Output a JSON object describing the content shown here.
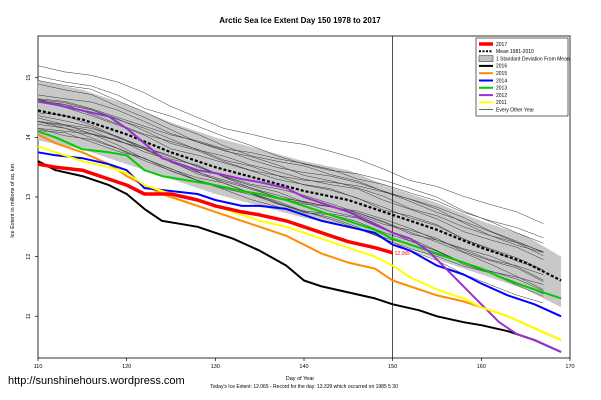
{
  "chart_data": {
    "type": "line",
    "title": "Arctic Sea Ice Extent Day 150 1978 to 2017",
    "xlabel": "Day of Year",
    "ylabel": "Ice Extent in millions of sq. km.",
    "xlim": [
      110,
      170
    ],
    "ylim": [
      10.3,
      15.7
    ],
    "x_ticks": [
      110,
      120,
      130,
      140,
      150,
      160,
      170
    ],
    "y_ticks": [
      11,
      12,
      13,
      14,
      15
    ],
    "marker_day": 150,
    "end_label": "12.065",
    "legend_position": "top-right",
    "legend": [
      {
        "label": "2017",
        "color": "#ff0000",
        "style": "thick"
      },
      {
        "label": "Mean 1981-2010",
        "color": "#000000",
        "style": "dotted"
      },
      {
        "label": "1 Standard Deviation From Mean",
        "color": "#c0c0c0",
        "style": "band"
      },
      {
        "label": "2016",
        "color": "#000000",
        "style": "solid"
      },
      {
        "label": "2015",
        "color": "#ff8c00",
        "style": "solid"
      },
      {
        "label": "2014",
        "color": "#0000ff",
        "style": "solid"
      },
      {
        "label": "2013",
        "color": "#00cc00",
        "style": "solid"
      },
      {
        "label": "2012",
        "color": "#9932cc",
        "style": "solid"
      },
      {
        "label": "2011",
        "color": "#ffff00",
        "style": "solid"
      },
      {
        "label": "Every Other Year",
        "color": "#000000",
        "style": "thin"
      }
    ],
    "mean": {
      "x": [
        110,
        115,
        120,
        125,
        130,
        135,
        140,
        145,
        150,
        155,
        160,
        165,
        169
      ],
      "y": [
        14.45,
        14.3,
        14.05,
        13.75,
        13.5,
        13.3,
        13.1,
        12.95,
        12.7,
        12.45,
        12.15,
        11.9,
        11.6
      ]
    },
    "std_band": {
      "x": [
        110,
        115,
        120,
        125,
        130,
        135,
        140,
        145,
        150,
        155,
        160,
        165,
        169
      ],
      "upper": [
        14.95,
        14.8,
        14.55,
        14.25,
        14.0,
        13.8,
        13.6,
        13.45,
        13.15,
        12.9,
        12.6,
        12.35,
        12.0
      ],
      "lower": [
        13.95,
        13.8,
        13.55,
        13.3,
        13.05,
        12.85,
        12.65,
        12.5,
        12.25,
        11.95,
        11.7,
        11.45,
        11.15
      ]
    },
    "series": [
      {
        "name": "2017",
        "color": "#ff0000",
        "width": 3.5,
        "x": [
          110,
          112,
          115,
          118,
          120,
          122,
          125,
          128,
          130,
          133,
          135,
          138,
          140,
          143,
          145,
          148,
          150
        ],
        "y": [
          13.55,
          13.5,
          13.45,
          13.3,
          13.2,
          13.05,
          13.05,
          12.95,
          12.85,
          12.75,
          12.7,
          12.6,
          12.5,
          12.35,
          12.25,
          12.15,
          12.065
        ]
      },
      {
        "name": "2016",
        "color": "#000000",
        "width": 2,
        "x": [
          110,
          112,
          115,
          118,
          120,
          122,
          124,
          126,
          128,
          130,
          132,
          135,
          138,
          140,
          142,
          145,
          148,
          150,
          153,
          155,
          158,
          160,
          163,
          166,
          169
        ],
        "y": [
          13.6,
          13.45,
          13.35,
          13.2,
          13.05,
          12.8,
          12.6,
          12.55,
          12.5,
          12.4,
          12.3,
          12.1,
          11.85,
          11.6,
          11.5,
          11.4,
          11.3,
          11.2,
          11.1,
          11.0,
          10.9,
          10.85,
          10.75,
          10.6,
          10.4
        ]
      },
      {
        "name": "2015",
        "color": "#ff8c00",
        "width": 2,
        "x": [
          110,
          112,
          115,
          118,
          120,
          122,
          124,
          126,
          128,
          130,
          133,
          135,
          138,
          140,
          142,
          145,
          148,
          150,
          153,
          155,
          158,
          160,
          163,
          166,
          169
        ],
        "y": [
          14.05,
          13.9,
          13.75,
          13.55,
          13.35,
          13.2,
          13.05,
          12.95,
          12.85,
          12.75,
          12.6,
          12.5,
          12.35,
          12.2,
          12.05,
          11.9,
          11.8,
          11.6,
          11.45,
          11.35,
          11.25,
          11.15,
          11.0,
          10.8,
          10.6
        ]
      },
      {
        "name": "2014",
        "color": "#0000ff",
        "width": 2,
        "x": [
          110,
          112,
          115,
          118,
          120,
          122,
          125,
          128,
          130,
          133,
          135,
          138,
          140,
          142,
          145,
          148,
          150,
          152,
          155,
          158,
          160,
          163,
          166,
          169
        ],
        "y": [
          13.75,
          13.7,
          13.65,
          13.55,
          13.45,
          13.15,
          13.1,
          13.05,
          12.95,
          12.85,
          12.85,
          12.8,
          12.7,
          12.6,
          12.5,
          12.4,
          12.2,
          12.1,
          11.85,
          11.7,
          11.55,
          11.35,
          11.2,
          11.0
        ]
      },
      {
        "name": "2013",
        "color": "#00cc00",
        "width": 2,
        "x": [
          110,
          112,
          115,
          118,
          120,
          122,
          124,
          126,
          128,
          130,
          133,
          135,
          138,
          140,
          142,
          145,
          148,
          150,
          153,
          155,
          158,
          160,
          163,
          166,
          169
        ],
        "y": [
          14.1,
          14.0,
          13.8,
          13.75,
          13.7,
          13.45,
          13.35,
          13.3,
          13.25,
          13.2,
          13.1,
          13.05,
          12.95,
          12.85,
          12.75,
          12.6,
          12.45,
          12.3,
          12.15,
          12.05,
          11.9,
          11.8,
          11.6,
          11.45,
          11.3
        ]
      },
      {
        "name": "2012",
        "color": "#9932cc",
        "width": 2,
        "x": [
          110,
          112,
          115,
          118,
          120,
          122,
          124,
          126,
          128,
          130,
          133,
          135,
          138,
          140,
          142,
          145,
          148,
          150,
          152,
          154,
          156,
          158,
          160,
          162,
          164,
          166,
          169
        ],
        "y": [
          14.6,
          14.55,
          14.45,
          14.35,
          14.15,
          13.9,
          13.65,
          13.55,
          13.45,
          13.4,
          13.3,
          13.25,
          13.15,
          13.0,
          12.9,
          12.75,
          12.55,
          12.4,
          12.3,
          12.1,
          11.8,
          11.5,
          11.2,
          10.9,
          10.7,
          10.6,
          10.4
        ]
      },
      {
        "name": "2011",
        "color": "#ffff00",
        "width": 2,
        "x": [
          110,
          112,
          115,
          118,
          120,
          122,
          125,
          128,
          130,
          133,
          135,
          138,
          140,
          142,
          145,
          148,
          150,
          152,
          155,
          158,
          160,
          163,
          166,
          169
        ],
        "y": [
          13.85,
          13.75,
          13.6,
          13.5,
          13.4,
          13.2,
          13.05,
          12.95,
          12.85,
          12.7,
          12.6,
          12.5,
          12.4,
          12.3,
          12.15,
          12.0,
          11.85,
          11.65,
          11.45,
          11.3,
          11.15,
          11.0,
          10.8,
          10.6
        ]
      }
    ]
  },
  "footer": {
    "credit": "http://sunshinehours.wordpress.com",
    "note": "Today's Ice Extent: 12.065  - Record for the day: 13.339 which occurred on 1985 5 30"
  }
}
